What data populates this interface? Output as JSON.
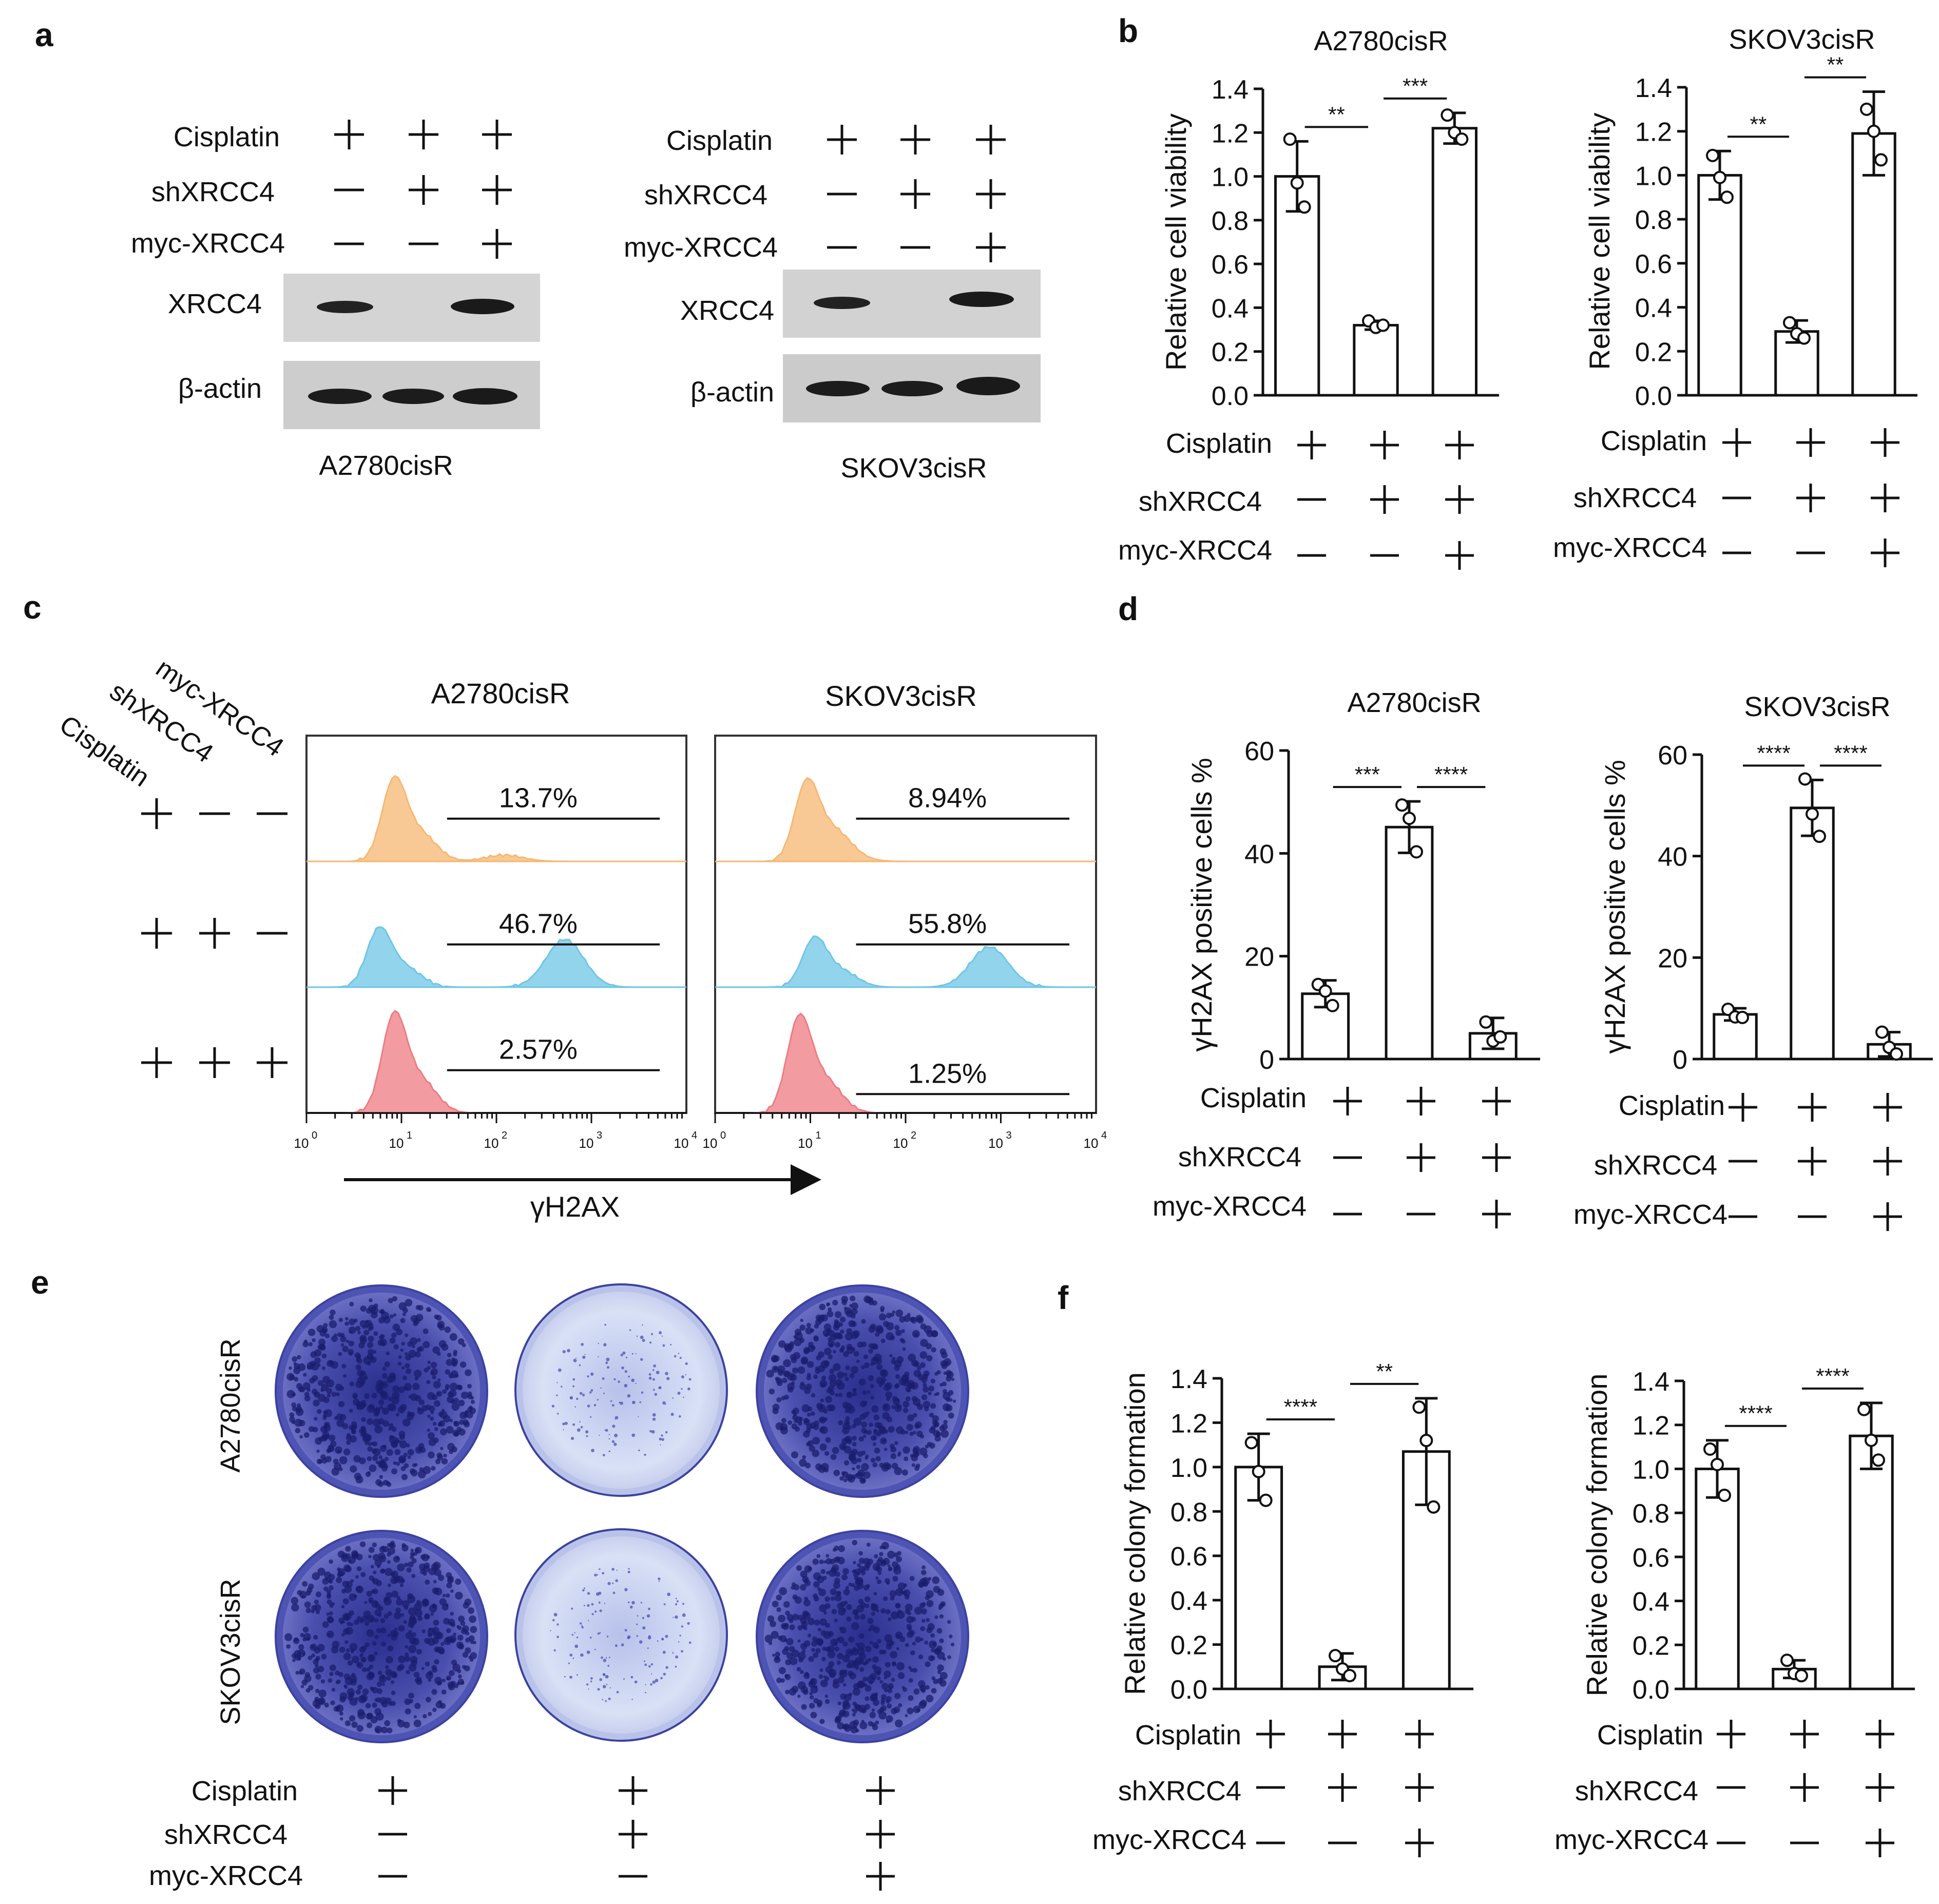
{
  "panels": {
    "a": "a",
    "b": "b",
    "c": "c",
    "d": "d",
    "e": "e",
    "f": "f"
  },
  "cond": {
    "rows": [
      "Cisplatin",
      "shXRCC4",
      "myc-XRCC4"
    ],
    "cols": [
      [
        "+",
        "—",
        "—"
      ],
      [
        "+",
        "+",
        "—"
      ],
      [
        "+",
        "+",
        "+"
      ]
    ]
  },
  "blot": {
    "labels": [
      "XRCC4",
      "β-actin"
    ],
    "cells": [
      "A2780cisR",
      "SKOV3cisR"
    ]
  },
  "flow": {
    "cells": [
      "A2780cisR",
      "SKOV3cisR"
    ],
    "xlabel": "γH2AX",
    "ticks": [
      "0",
      "1",
      "2",
      "3",
      "4"
    ],
    "percent": [
      [
        "13.7%",
        "46.7%",
        "2.57%"
      ],
      [
        "8.94%",
        "55.8%",
        "1.25%"
      ]
    ],
    "colors": [
      "#f7b772",
      "#6ec6e6",
      "#ee7b82"
    ]
  },
  "colony": {
    "rows": [
      "A2780cisR",
      "SKOV3cisR"
    ]
  },
  "chart_data": [
    {
      "panel": "b",
      "type": "bar",
      "title": "A2780cisR",
      "ylabel": "Relative cell viability",
      "ylim": [
        0,
        1.4
      ],
      "yticks": [
        "0.0",
        "0.2",
        "0.4",
        "0.6",
        "0.8",
        "1.0",
        "1.2",
        "1.4"
      ],
      "values": [
        1.0,
        0.32,
        1.22
      ],
      "sd": [
        0.16,
        0.02,
        0.07
      ],
      "points": [
        [
          1.17,
          0.97,
          0.86
        ],
        [
          0.34,
          0.31,
          0.32
        ],
        [
          1.28,
          1.2,
          1.17
        ]
      ],
      "sig": [
        "**",
        "***"
      ]
    },
    {
      "panel": "b",
      "type": "bar",
      "title": "SKOV3cisR",
      "ylabel": "Relative cell viability",
      "ylim": [
        0,
        1.4
      ],
      "yticks": [
        "0.0",
        "0.2",
        "0.4",
        "0.6",
        "0.8",
        "1.0",
        "1.2",
        "1.4"
      ],
      "values": [
        1.0,
        0.29,
        1.19
      ],
      "sd": [
        0.11,
        0.05,
        0.19
      ],
      "points": [
        [
          1.09,
          0.99,
          0.9
        ],
        [
          0.33,
          0.28,
          0.26
        ],
        [
          1.3,
          1.2,
          1.07
        ]
      ],
      "sig": [
        "**",
        "**"
      ]
    },
    {
      "panel": "d",
      "type": "bar",
      "title": "A2780cisR",
      "ylabel": "γH2AX positive cells %",
      "ylim": [
        0,
        60
      ],
      "yticks": [
        "0",
        "20",
        "40",
        "60"
      ],
      "values": [
        12.7,
        45.1,
        5.0
      ],
      "sd": [
        2.6,
        5.0,
        3.0
      ],
      "points": [
        [
          14.5,
          13.2,
          10.4
        ],
        [
          49.4,
          46.8,
          40.3
        ],
        [
          7.2,
          3.5,
          4.3
        ]
      ],
      "sig": [
        "***",
        "****"
      ]
    },
    {
      "panel": "d",
      "type": "bar",
      "title": "SKOV3cisR",
      "ylabel": "γH2AX positive cells %",
      "ylim": [
        0,
        60
      ],
      "yticks": [
        "0",
        "20",
        "40",
        "60"
      ],
      "values": [
        8.8,
        49.5,
        2.9
      ],
      "sd": [
        1.2,
        5.5,
        2.4
      ],
      "points": [
        [
          9.8,
          8.3,
          8.2
        ],
        [
          55.2,
          48.3,
          43.9
        ],
        [
          5.3,
          2.3,
          1.0
        ]
      ],
      "sig": [
        "****",
        "****"
      ]
    },
    {
      "panel": "f",
      "type": "bar",
      "title": "",
      "ylabel": "Relative colony formation",
      "ylim": [
        0,
        1.4
      ],
      "yticks": [
        "0.0",
        "0.2",
        "0.4",
        "0.6",
        "0.8",
        "1.0",
        "1.2",
        "1.4"
      ],
      "values": [
        1.0,
        0.1,
        1.07
      ],
      "sd": [
        0.15,
        0.06,
        0.24
      ],
      "points": [
        [
          1.11,
          0.98,
          0.85
        ],
        [
          0.15,
          0.09,
          0.06
        ],
        [
          1.27,
          1.12,
          0.82
        ]
      ],
      "sig": [
        "****",
        "**"
      ]
    },
    {
      "panel": "f",
      "type": "bar",
      "title": "",
      "ylabel": "Relative colony formation",
      "ylim": [
        0,
        1.4
      ],
      "yticks": [
        "0.0",
        "0.2",
        "0.4",
        "0.6",
        "0.8",
        "1.0",
        "1.2",
        "1.4"
      ],
      "values": [
        1.0,
        0.09,
        1.15
      ],
      "sd": [
        0.13,
        0.04,
        0.15
      ],
      "points": [
        [
          1.09,
          1.02,
          0.88
        ],
        [
          0.13,
          0.07,
          0.06
        ],
        [
          1.27,
          1.13,
          1.04
        ]
      ],
      "sig": [
        "****",
        "****"
      ]
    }
  ]
}
